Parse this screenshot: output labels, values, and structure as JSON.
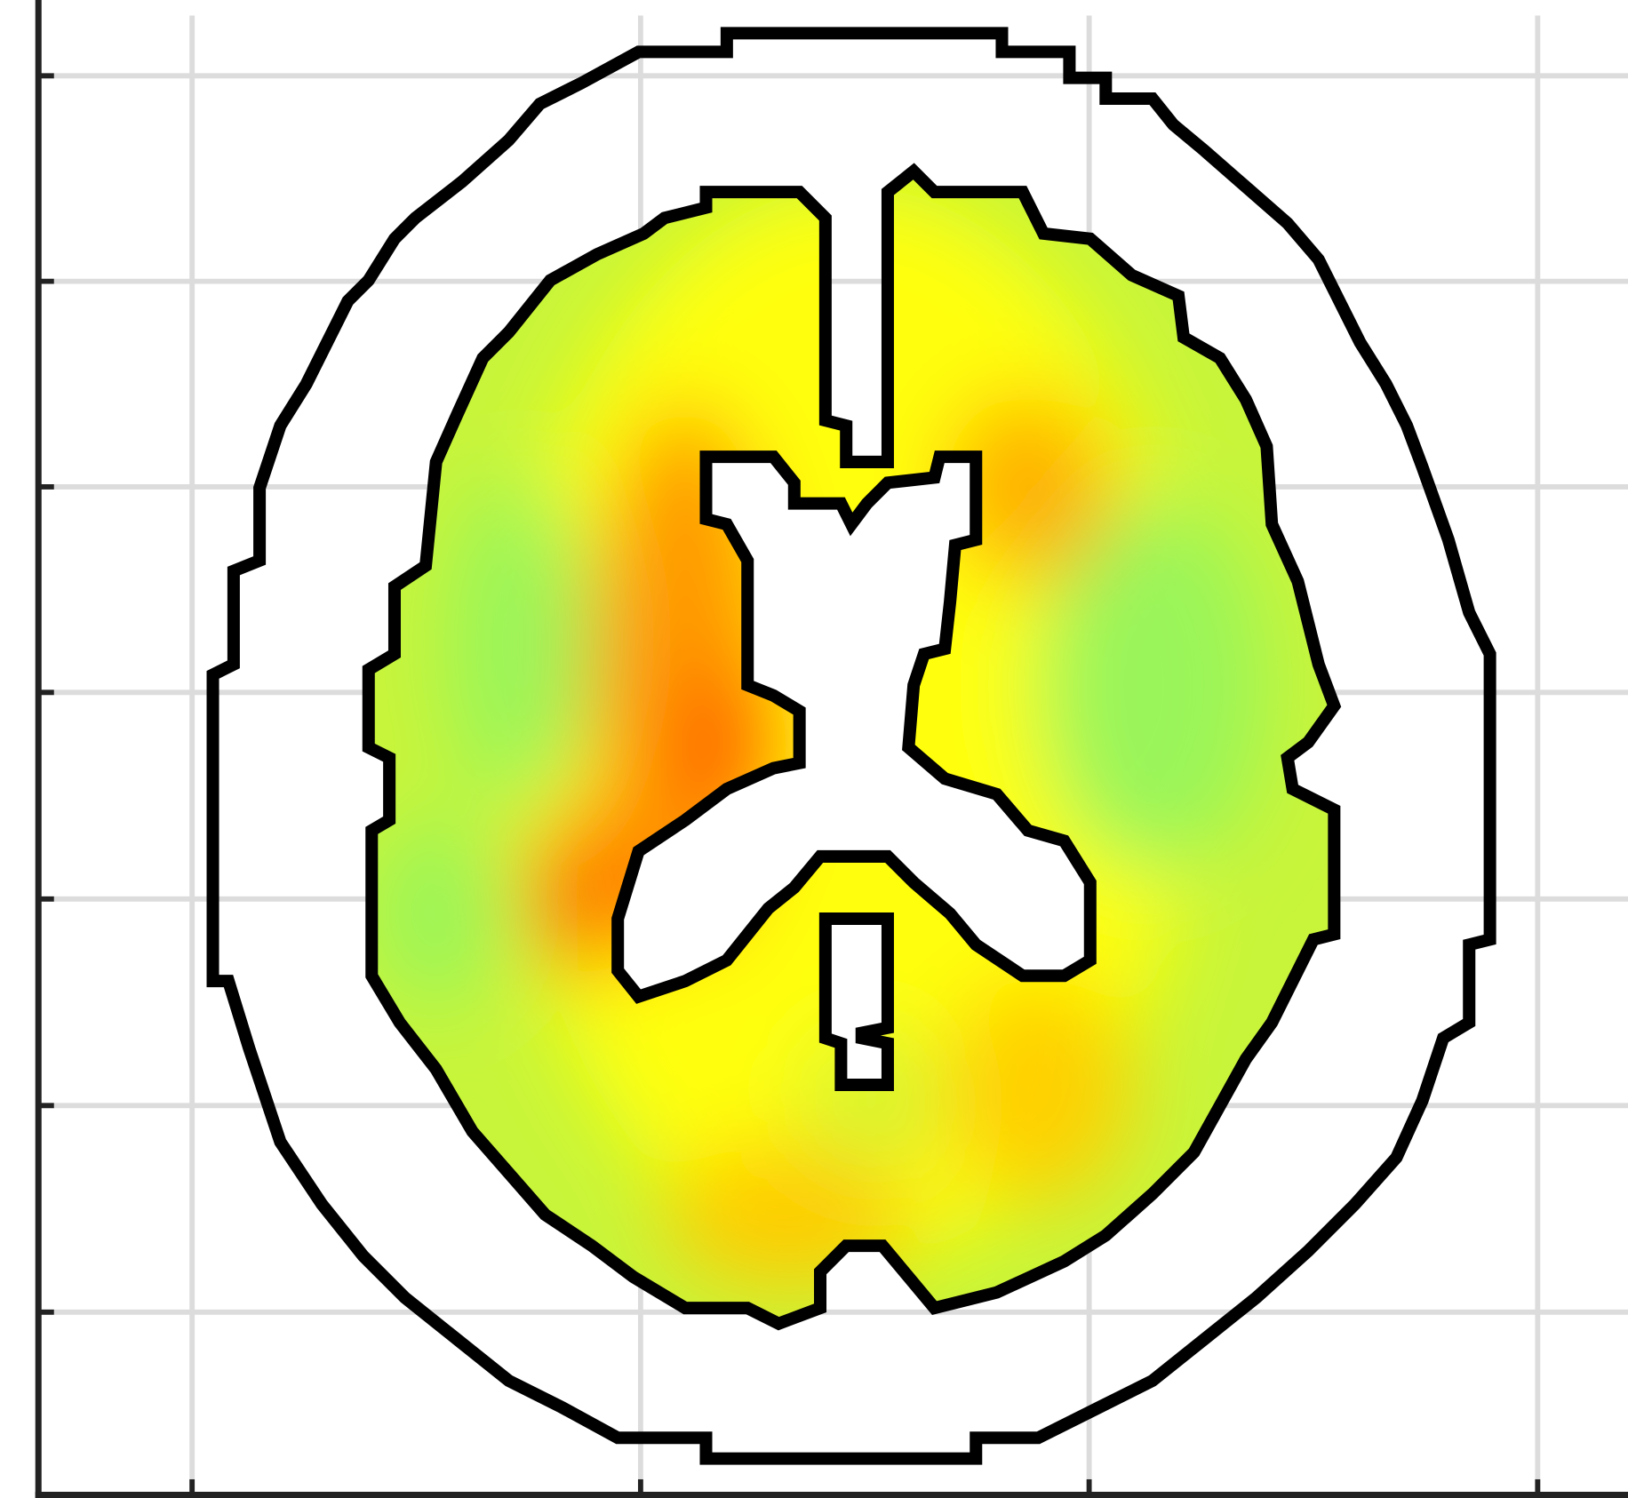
{
  "chart_data": {
    "type": "heatmap",
    "grid": true
  }
}
